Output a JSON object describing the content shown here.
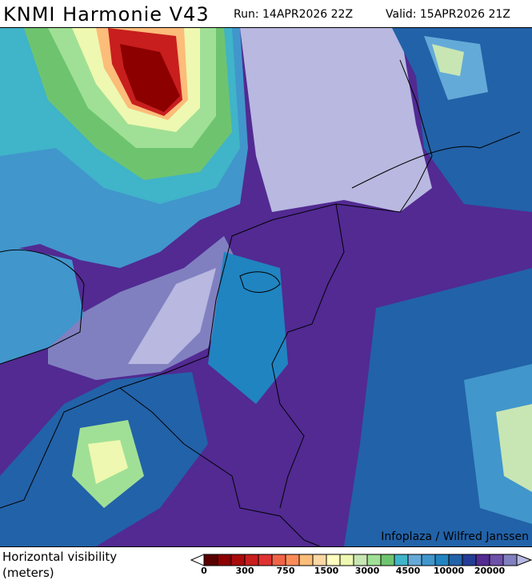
{
  "header": {
    "title": "KNMI Harmonie V43",
    "run": "Run: 14APR2026 22Z",
    "valid": "Valid: 15APR2026 21Z"
  },
  "map": {
    "attribution": "Infoplaza / Wilfred Janssen",
    "region": "North Sea, Netherlands, Belgium, NW Germany, SE England"
  },
  "legend": {
    "label_line1": "Horizontal visibility",
    "label_line2": "(meters)",
    "colors": [
      "#5a0000",
      "#8c0000",
      "#aa0a0a",
      "#c81e1e",
      "#e03232",
      "#f06446",
      "#fa8c58",
      "#fcbc7a",
      "#fcd8a2",
      "#ffffc0",
      "#eef8b0",
      "#c8e6b4",
      "#a0e096",
      "#6ec46e",
      "#40b4c8",
      "#64aad8",
      "#4196cc",
      "#2084c0",
      "#2262a8",
      "#243c96",
      "#522a92",
      "#6c50aa",
      "#8080c0"
    ],
    "under_color": "#ffffff",
    "over_color": "#b8b8e0",
    "ticks": [
      {
        "label": "0",
        "index": 0
      },
      {
        "label": "300",
        "index": 3
      },
      {
        "label": "750",
        "index": 6
      },
      {
        "label": "1500",
        "index": 9
      },
      {
        "label": "3000",
        "index": 12
      },
      {
        "label": "4500",
        "index": 15
      },
      {
        "label": "10000",
        "index": 18
      },
      {
        "label": "20000",
        "index": 21
      }
    ]
  }
}
